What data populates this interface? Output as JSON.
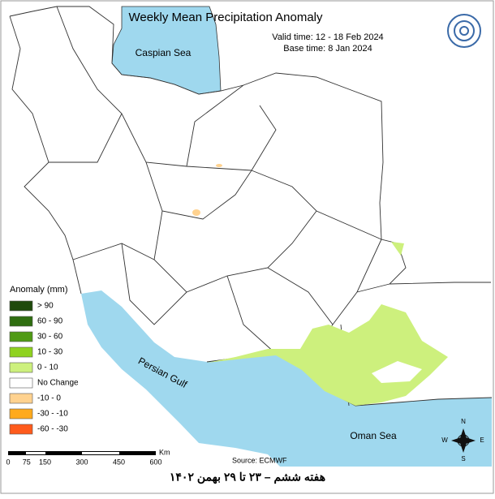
{
  "header": {
    "title": "Weekly Mean Precipitation Anomaly",
    "valid_time": "Valid time: 12 - 18 Feb 2024",
    "base_time": "Base time: 8 Jan 2024"
  },
  "water_labels": [
    "Caspian Sea",
    "Persian Gulf",
    "Oman Sea"
  ],
  "legend": {
    "title": "Anomaly (mm)",
    "items": [
      {
        "label": "> 90",
        "color": "#1f4a0c"
      },
      {
        "label": "60 - 90",
        "color": "#2f6e10"
      },
      {
        "label": "30 - 60",
        "color": "#4f9a14"
      },
      {
        "label": "10 - 30",
        "color": "#8fd21f"
      },
      {
        "label": "0 - 10",
        "color": "#cdf07d"
      },
      {
        "label": "No Change",
        "color": "#ffffff"
      },
      {
        "label": "-10 - 0",
        "color": "#ffd28f"
      },
      {
        "label": "-30 - -10",
        "color": "#ffaa1c"
      },
      {
        "label": "-60 - -30",
        "color": "#ff5b1c"
      }
    ]
  },
  "source": "Source: ECMWF",
  "scale": {
    "ticks": [
      0,
      75,
      150,
      300,
      450,
      600
    ],
    "unit": "Km"
  },
  "compass": {
    "n": "N",
    "s": "S",
    "e": "E",
    "w": "W"
  },
  "footer": "هفته ششم – ۲۳ تا ۲۹ بهمن ۱۴۰۲"
}
